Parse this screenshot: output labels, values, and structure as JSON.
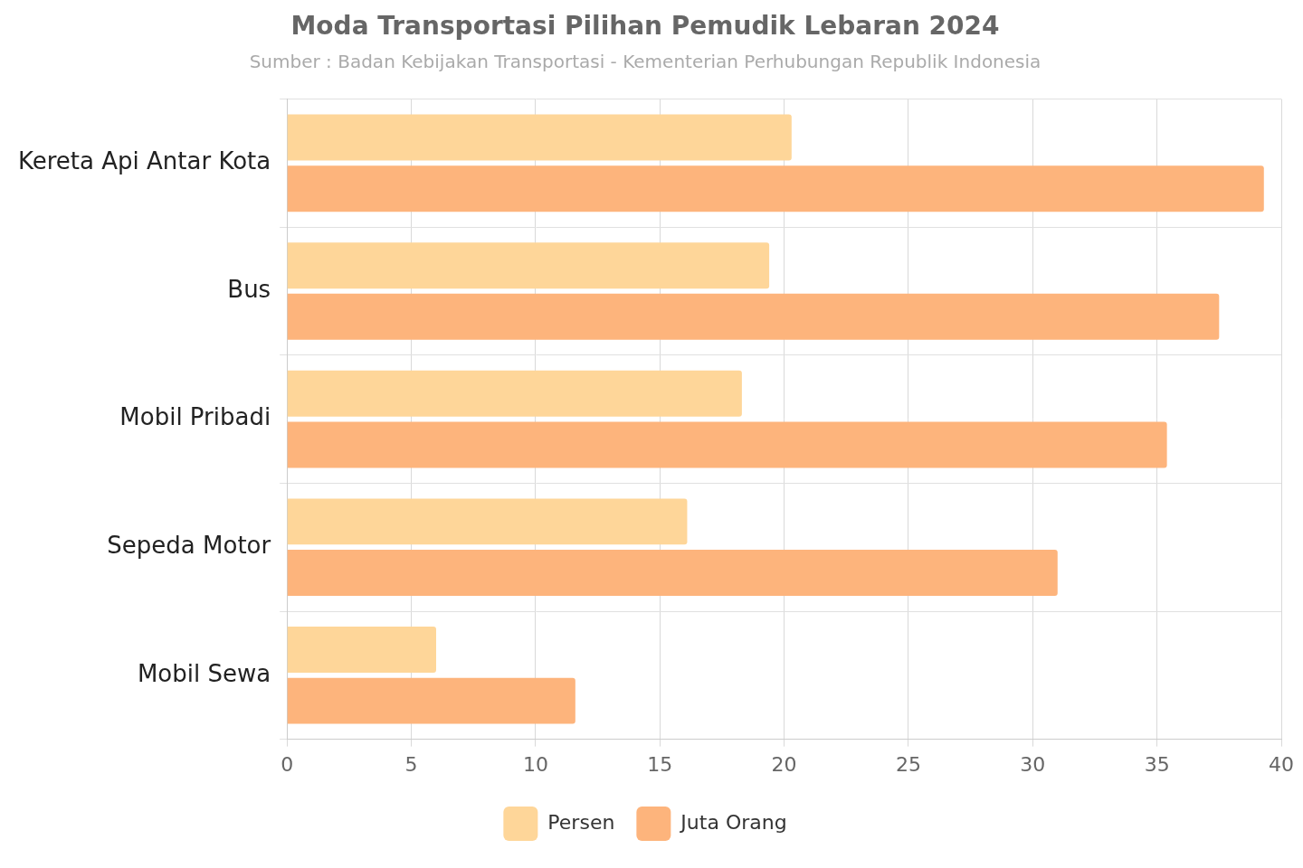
{
  "chart_data": {
    "type": "bar",
    "orientation": "horizontal",
    "title": "Moda Transportasi Pilihan Pemudik Lebaran 2024",
    "subtitle": "Sumber : Badan Kebijakan Transportasi - Kementerian Perhubungan Republik Indonesia",
    "categories": [
      "Kereta Api Antar Kota",
      "Bus",
      "Mobil Pribadi",
      "Sepeda Motor",
      "Mobil Sewa"
    ],
    "series": [
      {
        "name": "Persen",
        "color": "#fed699",
        "values": [
          20.3,
          19.4,
          18.3,
          16.1,
          6.0
        ]
      },
      {
        "name": "Juta Orang",
        "color": "#fdb47c",
        "values": [
          39.3,
          37.5,
          35.4,
          31.0,
          11.6
        ]
      }
    ],
    "xlim": [
      0,
      40
    ],
    "xticks": [
      0,
      5,
      10,
      15,
      20,
      25,
      30,
      35,
      40
    ],
    "grid": true,
    "legend": "bottom"
  }
}
